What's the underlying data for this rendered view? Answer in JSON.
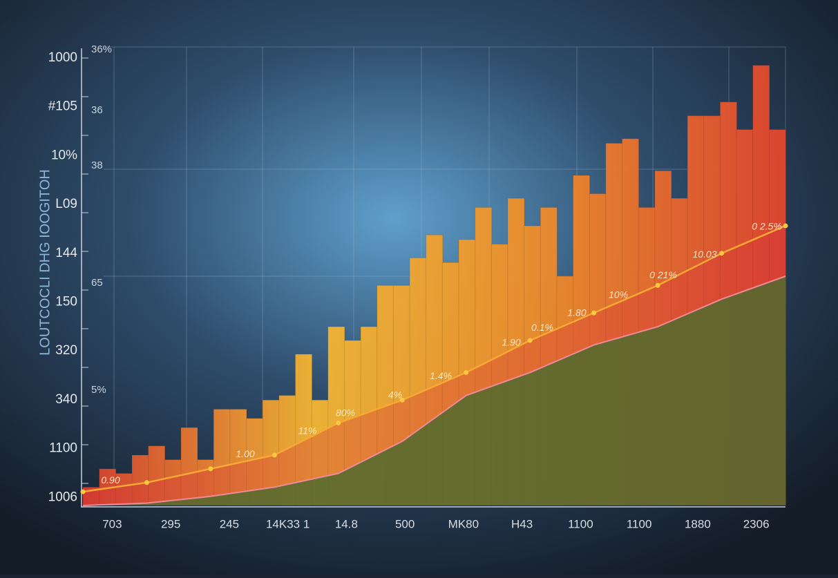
{
  "chart_data": {
    "type": "bar",
    "y_axis_label": "LOUTCOCLI DHG IOOGITOH",
    "ytick_labels": [
      "1000",
      "#105",
      "10%",
      "L09",
      "144",
      "150",
      "320",
      "340",
      "1100",
      "1006"
    ],
    "ytick_labels_secondary": [
      "36%",
      "36",
      "38",
      "65",
      "5%"
    ],
    "xlabels": [
      "703",
      "295",
      "245",
      "14K33 1",
      "14.8",
      "500",
      "MK80",
      "H43",
      "1100",
      "1100",
      "1880",
      "2306"
    ],
    "ylim": [
      0,
      100
    ],
    "values": [
      4,
      8,
      7,
      11,
      13,
      10,
      17,
      10,
      21,
      21,
      19,
      23,
      24,
      33,
      23,
      39,
      36,
      39,
      48,
      48,
      54,
      59,
      53,
      58,
      65,
      57,
      67,
      61,
      65,
      50,
      72,
      68,
      79,
      80,
      65,
      73,
      67,
      85,
      85,
      88,
      82,
      96,
      82
    ],
    "bar_gradient": [
      "#d9402f",
      "#f3b733",
      "#ee8a2a",
      "#e2452f"
    ],
    "line": {
      "color": "#f7a935",
      "values": [
        3,
        5,
        8,
        11,
        18,
        23,
        29,
        36,
        42,
        48,
        55,
        61
      ]
    },
    "area": {
      "color": "#4f6b2e",
      "values": [
        0,
        0.5,
        2,
        4,
        7,
        14,
        24,
        29,
        35,
        39,
        45,
        50
      ]
    },
    "annotations": [
      "0.90",
      "1.00",
      "11%",
      "80%",
      "4%",
      "1.4%",
      "1.90",
      "0.1%",
      "1.80",
      "10%",
      "0 21%",
      "10.03",
      "0 2.5%"
    ]
  }
}
